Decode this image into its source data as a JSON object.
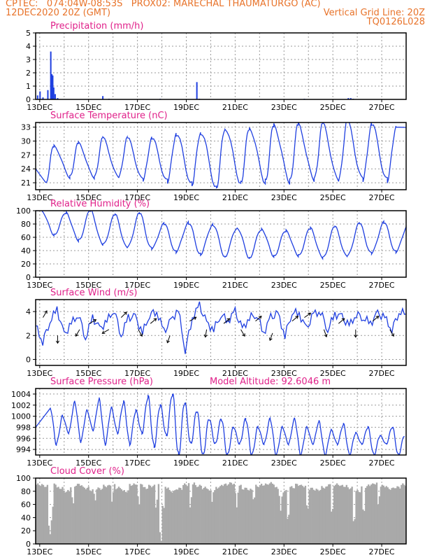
{
  "header": {
    "line1_left": "CPTEC:   074:04W-08:53S   PROX02: MARECHAL THAUMATURGO (AC)",
    "line2_left": "12DEC2020 20Z (GMT)",
    "line2_right": "Vertical Grid Line: 20Z",
    "line3_right": "TQ0126L028"
  },
  "colors": {
    "header": "#e8732a",
    "panel_title": "#e0218a",
    "series": "#1f3fe0",
    "cloud": "#a9a9a9",
    "axis": "#000000"
  },
  "x_axis": {
    "labels": [
      "13DEC",
      "15DEC",
      "17DEC",
      "19DEC",
      "21DEC",
      "23DEC",
      "25DEC",
      "27DEC"
    ]
  },
  "chart_data": [
    {
      "type": "bar",
      "title": "Precipitation (mm/h)",
      "ylim": [
        0,
        5
      ],
      "yticks": [
        "0",
        "1",
        "2",
        "3",
        "4",
        "5"
      ],
      "x_units": "days since 12DEC2020 20Z",
      "bars": [
        [
          0.08,
          0.3
        ],
        [
          0.18,
          0.6
        ],
        [
          0.3,
          0.15
        ],
        [
          0.5,
          0.7
        ],
        [
          0.62,
          3.6
        ],
        [
          0.66,
          1.9
        ],
        [
          0.7,
          1.8
        ],
        [
          0.74,
          0.9
        ],
        [
          0.8,
          0.4
        ],
        [
          0.9,
          0.1
        ],
        [
          2.75,
          0.25
        ],
        [
          3.0,
          0.05
        ],
        [
          5.1,
          0.05
        ],
        [
          6.6,
          1.3
        ],
        [
          6.7,
          0.05
        ],
        [
          11.0,
          0.05
        ],
        [
          12.8,
          0.1
        ],
        [
          12.9,
          0.1
        ],
        [
          13.0,
          0.05
        ]
      ],
      "grid": true
    },
    {
      "type": "line",
      "title": "Surface Temperature (nC)",
      "ylim": [
        19.5,
        34
      ],
      "yticks": [
        "21",
        "24",
        "27",
        "30",
        "33"
      ],
      "min_temps": [
        20.8,
        22.2,
        22.0,
        22.0,
        21.5,
        21.3,
        20.8,
        20.2,
        21.2,
        21.3,
        21.2,
        21.5,
        21.2,
        21.5,
        21.5
      ],
      "max_temps": [
        29.0,
        29.5,
        30.5,
        30.5,
        30.5,
        31.5,
        32.0,
        33.0,
        33.0,
        33.5,
        33.5,
        33.5,
        34.0,
        33.5,
        33.0,
        32.8
      ],
      "max_peak_days": [
        0.75,
        1.75,
        2.75,
        3.75,
        4.75,
        5.75,
        6.75,
        7.75,
        8.75,
        9.75,
        10.75,
        11.75,
        12.75,
        13.75,
        14.75,
        15.75
      ],
      "min_trough_days": [
        0.4,
        1.4,
        2.4,
        3.4,
        4.4,
        5.4,
        6.4,
        7.4,
        8.4,
        9.4,
        10.4,
        11.4,
        12.4,
        13.4,
        14.4
      ],
      "start_value": 24.0,
      "grid": true
    },
    {
      "type": "line",
      "title": "Relative Humidity (%)",
      "ylim": [
        0,
        100
      ],
      "yticks": [
        "0",
        "20",
        "40",
        "60",
        "80",
        "100"
      ],
      "day_max": [
        100,
        97,
        100,
        93,
        95,
        80,
        82,
        80,
        75,
        73,
        70,
        73,
        75,
        80,
        82,
        80
      ],
      "day_min": [
        64,
        55,
        48,
        43,
        42,
        38,
        35,
        32,
        30,
        32,
        32,
        28,
        30,
        35,
        38,
        40
      ],
      "grid": true
    },
    {
      "type": "line",
      "title": "Surface Wind (m/s)",
      "ylim": [
        -0.5,
        5
      ],
      "yticks": [
        "0",
        "2",
        "4"
      ],
      "speed": [
        2.8,
        1.5,
        3.2,
        4.2,
        2.0,
        3.0,
        3.8,
        1.8,
        3.5,
        2.5,
        3.2,
        4.2,
        2.0,
        3.5,
        3.5,
        2.2,
        3.8,
        4.0,
        2.3,
        3.2,
        4.2,
        0.8,
        3.5,
        4.5,
        3.0,
        2.5,
        3.8,
        3.2,
        4.0,
        2.5,
        3.5,
        3.8,
        2.2,
        3.5,
        3.8,
        2.0,
        4.0,
        3.8,
        2.5,
        3.8,
        4.0,
        2.5,
        3.8,
        3.5,
        2.8,
        3.8,
        3.5,
        3.0,
        3.8,
        3.5,
        2.5,
        4.0,
        3.8
      ],
      "arrows": [
        [
          0.3,
          3.5,
          60
        ],
        [
          0.9,
          2.0,
          270
        ],
        [
          1.8,
          2.5,
          240
        ],
        [
          2.2,
          3.0,
          30
        ],
        [
          3.0,
          2.5,
          210
        ],
        [
          3.5,
          3.5,
          45
        ],
        [
          4.2,
          2.5,
          300
        ],
        [
          4.7,
          3.0,
          40
        ],
        [
          5.5,
          2.0,
          250
        ],
        [
          6.3,
          3.2,
          30
        ],
        [
          7.0,
          2.5,
          260
        ],
        [
          7.7,
          3.0,
          40
        ],
        [
          8.4,
          2.5,
          300
        ],
        [
          9.0,
          3.2,
          40
        ],
        [
          9.7,
          2.2,
          250
        ],
        [
          10.5,
          3.2,
          40
        ],
        [
          11.0,
          3.5,
          35
        ],
        [
          11.8,
          2.5,
          290
        ],
        [
          12.4,
          3.0,
          40
        ],
        [
          13.1,
          2.5,
          270
        ],
        [
          13.8,
          3.2,
          40
        ],
        [
          14.5,
          2.5,
          300
        ],
        [
          15.2,
          2.8,
          45
        ]
      ],
      "grid": true
    },
    {
      "type": "line",
      "title": "Surface Pressure (hPa)",
      "annotation": "Model Altitude: 92.6046 m",
      "ylim": [
        993,
        1005
      ],
      "yticks": [
        "994",
        "996",
        "998",
        "1000",
        "1002",
        "1004"
      ],
      "day_max": [
        1001.5,
        1002.5,
        1003.0,
        1002.5,
        1003.5,
        1004.0,
        1001.0,
        999.5,
        999.5,
        999.5,
        999.5,
        999.0,
        998.5,
        998.0,
        998.0
      ],
      "day_min": [
        995.0,
        995.5,
        995.0,
        995.0,
        994.5,
        993.0,
        993.0,
        993.0,
        993.0,
        993.0,
        993.0,
        993.0,
        993.0,
        993.0,
        993.0
      ],
      "start_value": 998.0,
      "grid": true
    },
    {
      "type": "area",
      "title": "Cloud Cover (%)",
      "ylim": [
        0,
        100
      ],
      "yticks": [
        "0",
        "20",
        "40",
        "60",
        "80",
        "100"
      ],
      "levels": [
        90,
        88,
        92,
        85,
        80,
        88,
        90,
        85,
        82,
        84,
        88,
        90,
        85,
        80,
        90,
        92,
        85,
        88,
        90,
        86,
        80,
        84,
        90,
        92,
        88,
        85,
        80,
        86,
        90,
        92,
        88,
        84,
        82,
        88,
        90,
        92,
        85,
        80,
        86,
        90,
        88,
        84,
        82,
        86,
        92,
        90,
        88,
        85,
        80,
        86,
        90,
        92,
        88,
        84,
        86,
        90
      ],
      "dips": [
        [
          0.55,
          10
        ],
        [
          0.62,
          35
        ],
        [
          1.5,
          55
        ],
        [
          2.4,
          60
        ],
        [
          3.1,
          60
        ],
        [
          4.2,
          55
        ],
        [
          4.9,
          50
        ],
        [
          5.1,
          0
        ],
        [
          5.2,
          45
        ],
        [
          6.3,
          52
        ],
        [
          7.2,
          60
        ],
        [
          8.2,
          55
        ],
        [
          8.9,
          58
        ],
        [
          10.0,
          50
        ],
        [
          10.3,
          30
        ],
        [
          11.1,
          45
        ],
        [
          12.1,
          40
        ],
        [
          13.0,
          25
        ],
        [
          13.4,
          40
        ],
        [
          14.0,
          55
        ]
      ],
      "grid": true
    }
  ]
}
